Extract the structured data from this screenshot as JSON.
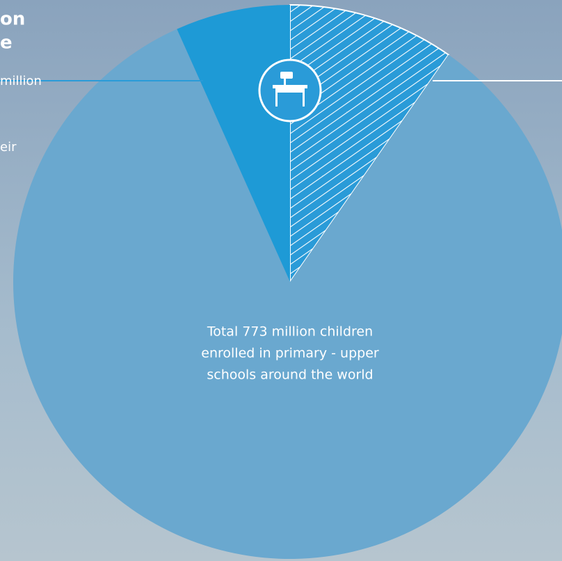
{
  "chart_data": {
    "type": "pie",
    "categories": [
      null,
      null,
      null
    ],
    "values": [
      9.7,
      83.6,
      6.7
    ],
    "colors": [
      "#2a9bd8",
      "#6aa8cf",
      "#1e9ad6"
    ],
    "hatched": [
      true,
      false,
      false
    ],
    "annotations": [
      "on",
      "e",
      "million",
      "eir"
    ],
    "center_text": [
      "Total 773 million children",
      "enrolled in primary - upper",
      "schools around the world"
    ]
  }
}
